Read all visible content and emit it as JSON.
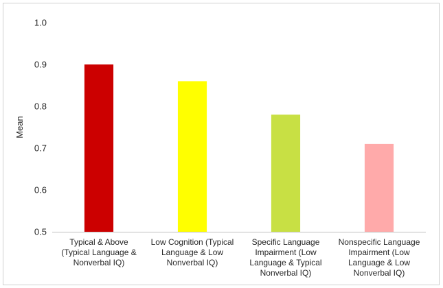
{
  "chart_data": {
    "type": "bar",
    "title": "",
    "xlabel": "",
    "ylabel": "Mean",
    "ylim": [
      0.5,
      1.0
    ],
    "yticks": [
      "0.5",
      "0.6",
      "0.7",
      "0.8",
      "0.9",
      "1.0"
    ],
    "grid": false,
    "legend": "none",
    "categories": [
      [
        "Typical & Above",
        "(Typical Language &",
        "Nonverbal IQ)"
      ],
      [
        "Low Cognition (Typical",
        "Language & Low",
        "Nonverbal IQ)"
      ],
      [
        "Specific Language",
        "Impairment (Low",
        "Language & Typical",
        "Nonverbal IQ)"
      ],
      [
        "Nonspecific Language",
        "Impairment (Low",
        "Language & Low",
        "Nonverbal IQ)"
      ]
    ],
    "values": [
      0.9,
      0.86,
      0.78,
      0.71
    ],
    "colors": [
      "#cc0000",
      "#ffff00",
      "#c8e044",
      "#ffaaaa"
    ]
  }
}
